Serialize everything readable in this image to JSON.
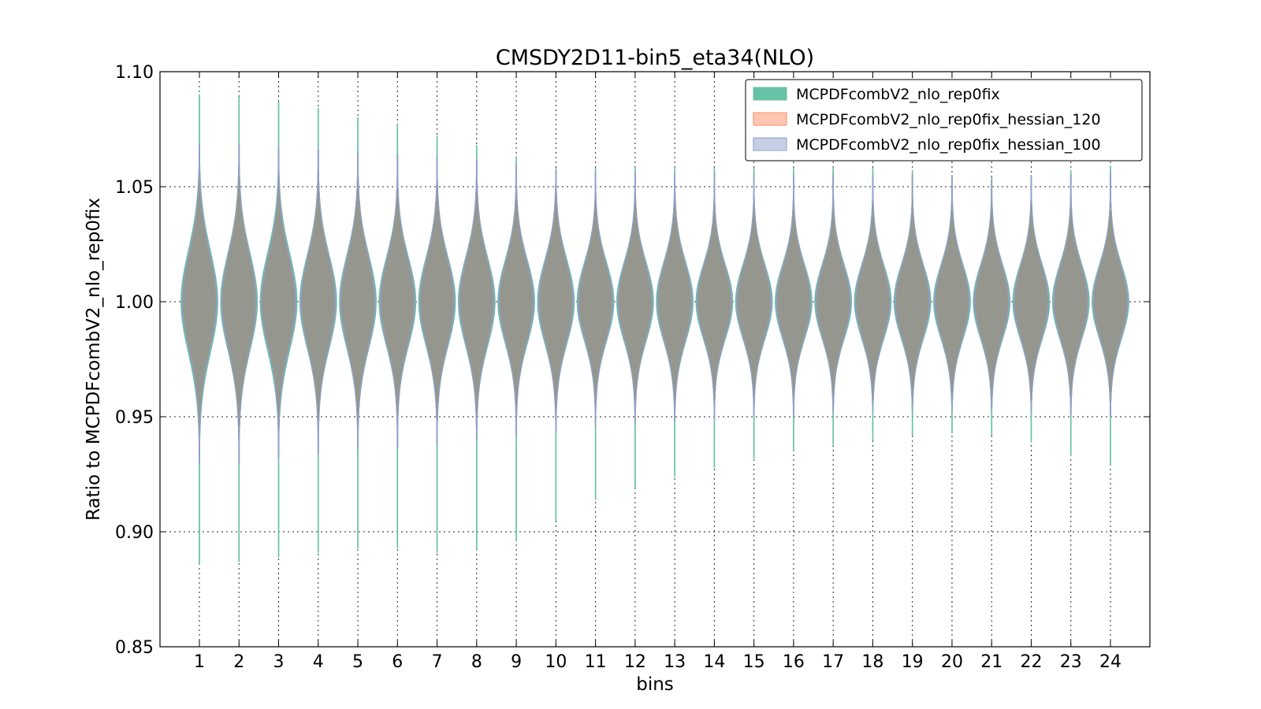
{
  "chart_data": {
    "type": "violin",
    "title": "CMSDY2D11-bin5_eta34(NLO)",
    "xlabel": "bins",
    "ylabel": "Ratio to MCPDFcombV2_nlo_rep0fix",
    "ylim": [
      0.85,
      1.1
    ],
    "yticks": [
      "0.85",
      "0.90",
      "0.95",
      "1.00",
      "1.05",
      "1.10"
    ],
    "ytick_values": [
      0.85,
      0.9,
      0.95,
      1.0,
      1.05,
      1.1
    ],
    "categories": [
      "1",
      "2",
      "3",
      "4",
      "5",
      "6",
      "7",
      "8",
      "9",
      "10",
      "11",
      "12",
      "13",
      "14",
      "15",
      "16",
      "17",
      "18",
      "19",
      "20",
      "21",
      "22",
      "23",
      "24"
    ],
    "grid": true,
    "legend_position": "top-right",
    "series": [
      {
        "name": "MCPDFcombV2_nlo_rep0fix",
        "color": "#66c2a5",
        "min": [
          0.886,
          0.887,
          0.889,
          0.891,
          0.893,
          0.893,
          0.891,
          0.892,
          0.896,
          0.905,
          0.914,
          0.919,
          0.924,
          0.928,
          0.932,
          0.935,
          0.938,
          0.94,
          0.942,
          0.943,
          0.942,
          0.939,
          0.933,
          0.929
        ],
        "max": [
          1.09,
          1.089,
          1.087,
          1.084,
          1.08,
          1.077,
          1.072,
          1.068,
          1.063,
          1.058,
          1.058,
          1.058,
          1.058,
          1.058,
          1.058,
          1.058,
          1.058,
          1.058,
          1.057,
          1.055,
          1.054,
          1.055,
          1.057,
          1.059
        ],
        "spread": [
          0.022,
          0.021,
          0.021,
          0.02,
          0.02,
          0.019,
          0.019,
          0.019,
          0.018,
          0.018,
          0.017,
          0.017,
          0.017,
          0.016,
          0.016,
          0.016,
          0.016,
          0.016,
          0.016,
          0.016,
          0.016,
          0.016,
          0.016,
          0.016
        ]
      },
      {
        "name": "MCPDFcombV2_nlo_rep0fix_hessian_120",
        "color": "#fc8d62",
        "min": [
          0.93,
          0.93,
          0.932,
          0.934,
          0.936,
          0.937,
          0.938,
          0.94,
          0.942,
          0.944,
          0.946,
          0.947,
          0.948,
          0.949,
          0.95,
          0.951,
          0.952,
          0.953,
          0.953,
          0.953,
          0.953,
          0.952,
          0.951,
          0.95
        ],
        "max": [
          1.068,
          1.068,
          1.067,
          1.066,
          1.065,
          1.064,
          1.063,
          1.062,
          1.06,
          1.057,
          1.056,
          1.056,
          1.056,
          1.056,
          1.055,
          1.055,
          1.055,
          1.055,
          1.055,
          1.054,
          1.053,
          1.054,
          1.055,
          1.056
        ],
        "spread": [
          0.021,
          0.021,
          0.02,
          0.02,
          0.02,
          0.019,
          0.019,
          0.019,
          0.018,
          0.018,
          0.017,
          0.017,
          0.017,
          0.016,
          0.016,
          0.016,
          0.016,
          0.016,
          0.016,
          0.016,
          0.016,
          0.016,
          0.016,
          0.016
        ]
      },
      {
        "name": "MCPDFcombV2_nlo_rep0fix_hessian_100",
        "color": "#8da0cb",
        "min": [
          0.93,
          0.93,
          0.932,
          0.934,
          0.936,
          0.937,
          0.938,
          0.94,
          0.942,
          0.944,
          0.946,
          0.947,
          0.948,
          0.949,
          0.95,
          0.951,
          0.952,
          0.953,
          0.953,
          0.953,
          0.953,
          0.952,
          0.951,
          0.95
        ],
        "max": [
          1.068,
          1.068,
          1.067,
          1.066,
          1.065,
          1.064,
          1.063,
          1.062,
          1.06,
          1.057,
          1.056,
          1.056,
          1.056,
          1.056,
          1.055,
          1.055,
          1.055,
          1.055,
          1.055,
          1.054,
          1.053,
          1.054,
          1.055,
          1.056
        ],
        "spread": [
          0.021,
          0.021,
          0.02,
          0.02,
          0.02,
          0.019,
          0.019,
          0.019,
          0.018,
          0.018,
          0.017,
          0.017,
          0.017,
          0.016,
          0.016,
          0.016,
          0.016,
          0.016,
          0.016,
          0.016,
          0.016,
          0.016,
          0.016,
          0.016
        ]
      }
    ]
  }
}
